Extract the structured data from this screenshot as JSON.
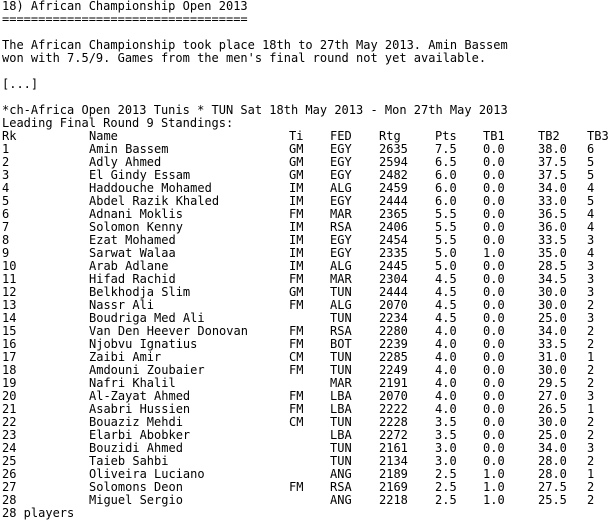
{
  "heading": "18) African Championship Open 2013",
  "underline": "==================================",
  "intro_line1": "The African Championship took place 18th to 27th May 2013. Amin Bassem",
  "intro_line2": "won with 7.5/9. Games from the men's final round not yet available.",
  "ellipsis": "[...]",
  "event_line": "*ch-Africa Open 2013 Tunis * TUN Sat 18th May 2013 - Mon 27th May 2013",
  "standings_title": "Leading Final Round 9 Standings:",
  "columns": {
    "rk": "Rk",
    "name": "Name",
    "ti": "Ti",
    "fed": "FED",
    "rtg": "Rtg",
    "pts": "Pts",
    "tb1": "TB1",
    "tb2": "TB2",
    "tb3": "TB3"
  },
  "rows": [
    {
      "rk": "1",
      "name": "Amin Bassem",
      "ti": "GM",
      "fed": "EGY",
      "rtg": "2635",
      "pts": "7.5",
      "tb1": "0.0",
      "tb2": "38.0",
      "tb3": "6"
    },
    {
      "rk": "2",
      "name": "Adly Ahmed",
      "ti": "GM",
      "fed": "EGY",
      "rtg": "2594",
      "pts": "6.5",
      "tb1": "0.0",
      "tb2": "37.5",
      "tb3": "5"
    },
    {
      "rk": "3",
      "name": "El Gindy Essam",
      "ti": "GM",
      "fed": "EGY",
      "rtg": "2482",
      "pts": "6.0",
      "tb1": "0.0",
      "tb2": "37.5",
      "tb3": "5"
    },
    {
      "rk": "4",
      "name": "Haddouche Mohamed",
      "ti": "IM",
      "fed": "ALG",
      "rtg": "2459",
      "pts": "6.0",
      "tb1": "0.0",
      "tb2": "34.0",
      "tb3": "4"
    },
    {
      "rk": "5",
      "name": "Abdel Razik Khaled",
      "ti": "IM",
      "fed": "EGY",
      "rtg": "2444",
      "pts": "6.0",
      "tb1": "0.0",
      "tb2": "33.0",
      "tb3": "5"
    },
    {
      "rk": "6",
      "name": "Adnani Moklis",
      "ti": "FM",
      "fed": "MAR",
      "rtg": "2365",
      "pts": "5.5",
      "tb1": "0.0",
      "tb2": "36.5",
      "tb3": "4"
    },
    {
      "rk": "7",
      "name": "Solomon Kenny",
      "ti": "IM",
      "fed": "RSA",
      "rtg": "2406",
      "pts": "5.5",
      "tb1": "0.0",
      "tb2": "36.0",
      "tb3": "4"
    },
    {
      "rk": "8",
      "name": "Ezat Mohamed",
      "ti": "IM",
      "fed": "EGY",
      "rtg": "2454",
      "pts": "5.5",
      "tb1": "0.0",
      "tb2": "33.5",
      "tb3": "3"
    },
    {
      "rk": "9",
      "name": "Sarwat Walaa",
      "ti": "IM",
      "fed": "EGY",
      "rtg": "2335",
      "pts": "5.0",
      "tb1": "1.0",
      "tb2": "35.0",
      "tb3": "4"
    },
    {
      "rk": "10",
      "name": "Arab Adlane",
      "ti": "IM",
      "fed": "ALG",
      "rtg": "2445",
      "pts": "5.0",
      "tb1": "0.0",
      "tb2": "28.5",
      "tb3": "3"
    },
    {
      "rk": "11",
      "name": "Hifad Rachid",
      "ti": "FM",
      "fed": "MAR",
      "rtg": "2304",
      "pts": "4.5",
      "tb1": "0.0",
      "tb2": "34.5",
      "tb3": "3"
    },
    {
      "rk": "12",
      "name": "Belkhodja Slim",
      "ti": "GM",
      "fed": "TUN",
      "rtg": "2444",
      "pts": "4.5",
      "tb1": "0.0",
      "tb2": "30.0",
      "tb3": "3"
    },
    {
      "rk": "13",
      "name": "Nassr Ali",
      "ti": "FM",
      "fed": "ALG",
      "rtg": "2070",
      "pts": "4.5",
      "tb1": "0.0",
      "tb2": "30.0",
      "tb3": "2"
    },
    {
      "rk": "14",
      "name": "Boudriga Med Ali",
      "ti": "",
      "fed": "TUN",
      "rtg": "2234",
      "pts": "4.5",
      "tb1": "0.0",
      "tb2": "25.0",
      "tb3": "3"
    },
    {
      "rk": "15",
      "name": "Van Den Heever Donovan",
      "ti": "FM",
      "fed": "RSA",
      "rtg": "2280",
      "pts": "4.0",
      "tb1": "0.0",
      "tb2": "34.0",
      "tb3": "2"
    },
    {
      "rk": "16",
      "name": "Njobvu Ignatius",
      "ti": "FM",
      "fed": "BOT",
      "rtg": "2239",
      "pts": "4.0",
      "tb1": "0.0",
      "tb2": "33.5",
      "tb3": "2"
    },
    {
      "rk": "17",
      "name": "Zaibi Amir",
      "ti": "CM",
      "fed": "TUN",
      "rtg": "2285",
      "pts": "4.0",
      "tb1": "0.0",
      "tb2": "31.0",
      "tb3": "1"
    },
    {
      "rk": "18",
      "name": "Amdouni Zoubaier",
      "ti": "FM",
      "fed": "TUN",
      "rtg": "2249",
      "pts": "4.0",
      "tb1": "0.0",
      "tb2": "30.0",
      "tb3": "2"
    },
    {
      "rk": "19",
      "name": "Nafri Khalil",
      "ti": "",
      "fed": "MAR",
      "rtg": "2191",
      "pts": "4.0",
      "tb1": "0.0",
      "tb2": "29.5",
      "tb3": "2"
    },
    {
      "rk": "20",
      "name": "Al-Zayat Ahmed",
      "ti": "FM",
      "fed": "LBA",
      "rtg": "2070",
      "pts": "4.0",
      "tb1": "0.0",
      "tb2": "27.0",
      "tb3": "3"
    },
    {
      "rk": "21",
      "name": "Asabri Hussien",
      "ti": "FM",
      "fed": "LBA",
      "rtg": "2222",
      "pts": "4.0",
      "tb1": "0.0",
      "tb2": "26.5",
      "tb3": "1"
    },
    {
      "rk": "22",
      "name": "Bouaziz Mehdi",
      "ti": "CM",
      "fed": "TUN",
      "rtg": "2228",
      "pts": "3.5",
      "tb1": "0.0",
      "tb2": "30.0",
      "tb3": "2"
    },
    {
      "rk": "23",
      "name": "Elarbi Abobker",
      "ti": "",
      "fed": "LBA",
      "rtg": "2272",
      "pts": "3.5",
      "tb1": "0.0",
      "tb2": "25.0",
      "tb3": "2"
    },
    {
      "rk": "24",
      "name": "Bouzidi Ahmed",
      "ti": "",
      "fed": "TUN",
      "rtg": "2161",
      "pts": "3.0",
      "tb1": "0.0",
      "tb2": "34.0",
      "tb3": "3"
    },
    {
      "rk": "25",
      "name": "Taieb Sahbi",
      "ti": "",
      "fed": "TUN",
      "rtg": "2134",
      "pts": "3.0",
      "tb1": "0.0",
      "tb2": "28.0",
      "tb3": "2"
    },
    {
      "rk": "26",
      "name": "Oliveira Luciano",
      "ti": "",
      "fed": "ANG",
      "rtg": "2189",
      "pts": "2.5",
      "tb1": "1.0",
      "tb2": "28.0",
      "tb3": "1"
    },
    {
      "rk": "27",
      "name": "Solomons Deon",
      "ti": "FM",
      "fed": "RSA",
      "rtg": "2169",
      "pts": "2.5",
      "tb1": "1.0",
      "tb2": "27.5",
      "tb3": "2"
    },
    {
      "rk": "28",
      "name": "Miguel Sergio",
      "ti": "",
      "fed": "ANG",
      "rtg": "2218",
      "pts": "2.5",
      "tb1": "1.0",
      "tb2": "25.5",
      "tb3": "2"
    }
  ],
  "footer": "28 players"
}
